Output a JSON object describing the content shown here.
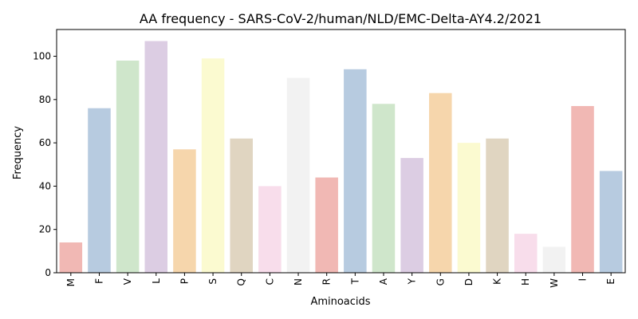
{
  "chart_data": {
    "type": "bar",
    "title": "AA frequency - SARS-CoV-2/human/NLD/EMC-Delta-AY4.2/2021",
    "xlabel": "Aminoacids",
    "ylabel": "Frequency",
    "categories": [
      "M",
      "F",
      "V",
      "L",
      "P",
      "S",
      "Q",
      "C",
      "N",
      "R",
      "T",
      "A",
      "Y",
      "G",
      "D",
      "K",
      "H",
      "W",
      "I",
      "E"
    ],
    "values": [
      14,
      76,
      98,
      107,
      57,
      99,
      62,
      40,
      90,
      44,
      94,
      78,
      53,
      83,
      60,
      62,
      18,
      12,
      77,
      47
    ],
    "yticks": [
      0,
      20,
      40,
      60,
      80,
      100
    ],
    "ylim": [
      0,
      112.35
    ],
    "grid": false,
    "colors": [
      "#f1b8b4",
      "#b7cbe0",
      "#cfe6cb",
      "#dccde3",
      "#f6d6ac",
      "#fbfad0",
      "#e0d5c1",
      "#f8ddeb",
      "#f2f2f2"
    ]
  }
}
